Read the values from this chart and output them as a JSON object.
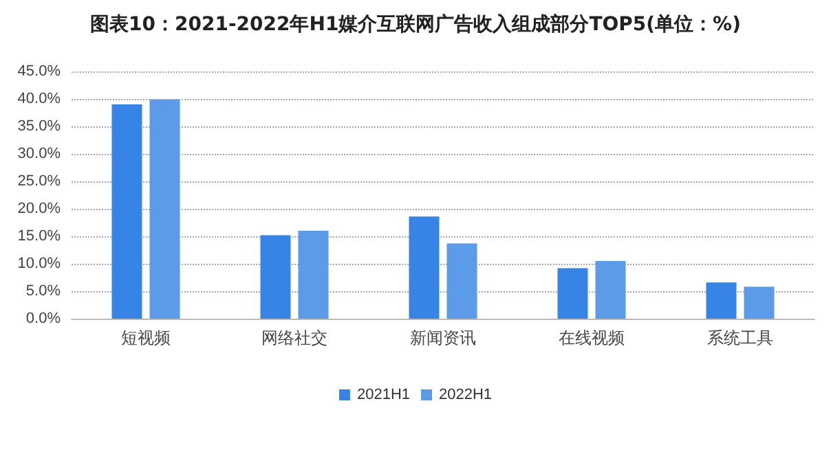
{
  "chart_data": {
    "type": "bar",
    "title": "图表10：2021-2022年H1媒介互联网广告收入组成部分TOP5(单位：%)",
    "categories": [
      "短视频",
      "网络社交",
      "新闻资讯",
      "在线视频",
      "系统工具"
    ],
    "series": [
      {
        "name": "2021H1",
        "color": "#3784e6",
        "values": [
          39.0,
          15.2,
          18.6,
          9.2,
          6.6
        ]
      },
      {
        "name": "2022H1",
        "color": "#5b9be8",
        "values": [
          39.9,
          16.0,
          13.7,
          10.5,
          5.8
        ]
      }
    ],
    "ylim": [
      0,
      45
    ],
    "yticks": [
      {
        "value": 0,
        "label": "0.0%"
      },
      {
        "value": 5,
        "label": "5.0%"
      },
      {
        "value": 10,
        "label": "10.0%"
      },
      {
        "value": 15,
        "label": "15.0%"
      },
      {
        "value": 20,
        "label": "20.0%"
      },
      {
        "value": 25,
        "label": "25.0%"
      },
      {
        "value": 30,
        "label": "30.0%"
      },
      {
        "value": 35,
        "label": "35.0%"
      },
      {
        "value": 40,
        "label": "40.0%"
      },
      {
        "value": 45,
        "label": "45.0%"
      }
    ],
    "grid": "y",
    "legend": "bottom"
  }
}
